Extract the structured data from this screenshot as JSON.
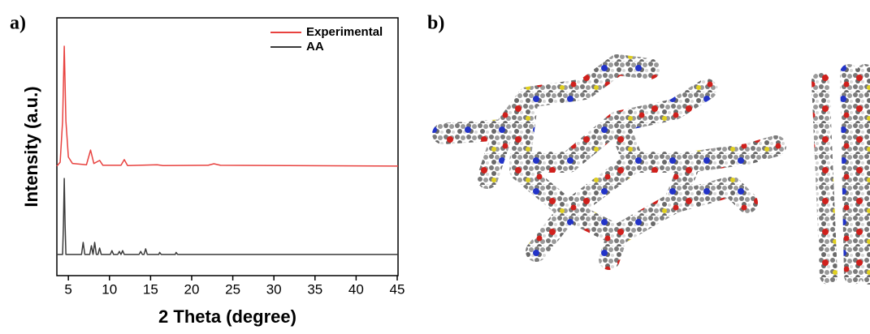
{
  "panels": {
    "a": "a)",
    "b": "b)"
  },
  "chart_data": {
    "type": "line",
    "xlabel": "2 Theta (degree)",
    "ylabel": "Intensity (a.u.)",
    "xlim": [
      3.6,
      45.1
    ],
    "xticks": [
      5,
      10,
      15,
      20,
      25,
      30,
      35,
      40,
      45
    ],
    "ylim": [
      0,
      100
    ],
    "legend": "upper right",
    "series": [
      {
        "name": "Experimental",
        "color": "#e8423f",
        "x": [
          3.6,
          4.0,
          4.3,
          4.5,
          4.7,
          5.0,
          5.5,
          7.2,
          7.7,
          8.1,
          8.8,
          9.2,
          11.4,
          11.8,
          12.2,
          15.8,
          16.5,
          22.0,
          22.7,
          23.5,
          45.1
        ],
        "values": [
          42.5,
          44,
          60,
          89,
          60,
          46,
          43.5,
          43,
          48.7,
          43.5,
          44.7,
          42.8,
          42.8,
          45,
          42.7,
          43,
          42.7,
          42.8,
          43.4,
          42.8,
          42.5
        ]
      },
      {
        "name": "AA",
        "color": "#3a3a3a",
        "x": [
          3.6,
          4.3,
          4.4,
          4.5,
          4.6,
          4.7,
          6.6,
          6.8,
          7.0,
          7.6,
          7.8,
          8.0,
          8.2,
          8.4,
          8.6,
          8.8,
          9.0,
          10.1,
          10.3,
          10.5,
          11.0,
          11.2,
          11.4,
          11.6,
          11.8,
          13.6,
          13.8,
          14.0,
          14.2,
          14.4,
          14.6,
          16.0,
          16.1,
          16.3,
          18.0,
          18.1,
          18.3,
          45.1
        ],
        "values": [
          8.2,
          8.2,
          20,
          37.7,
          20,
          8.2,
          8.2,
          12.9,
          8.2,
          8.2,
          11.6,
          8.2,
          12.9,
          8.2,
          8.2,
          10.7,
          8.2,
          8.2,
          9.7,
          8.2,
          8.2,
          9.4,
          8.2,
          9.7,
          8.2,
          8.2,
          9.4,
          8.2,
          8.2,
          10.4,
          8.2,
          8.2,
          9.0,
          8.2,
          8.2,
          9.0,
          8.2,
          8.2
        ]
      }
    ]
  }
}
